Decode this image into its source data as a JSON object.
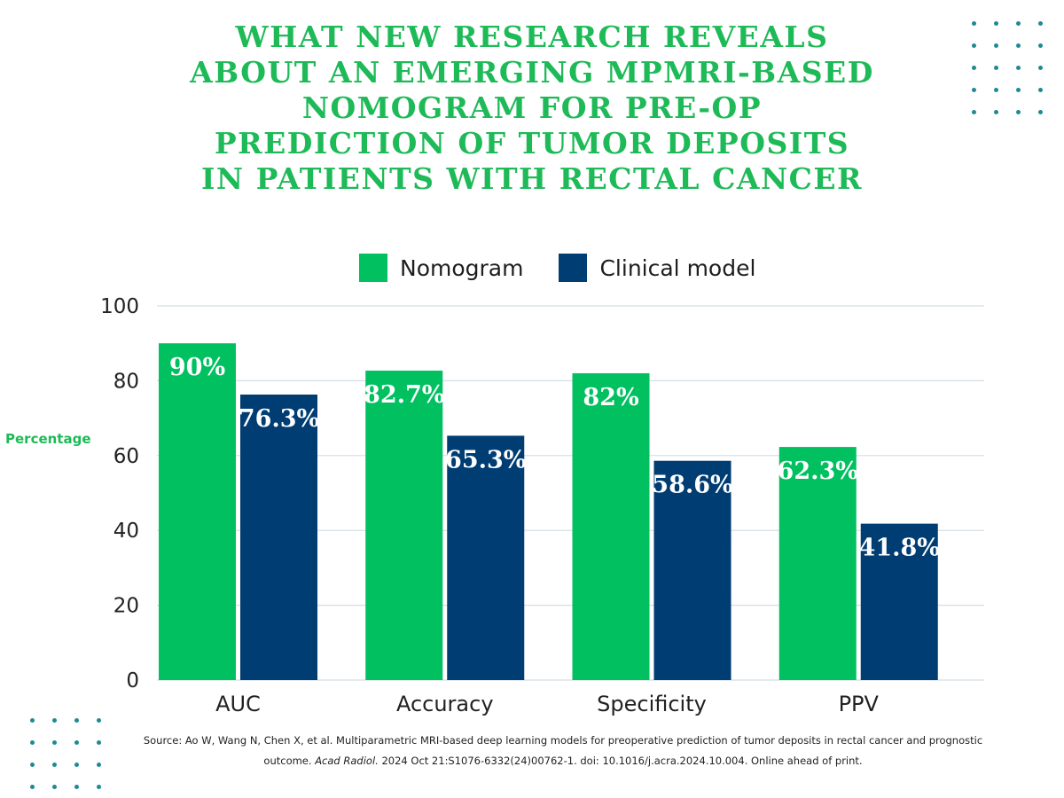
{
  "title_lines": [
    "WHAT NEW RESEARCH REVEALS",
    "ABOUT AN EMERGING MPMRI-BASED",
    "NOMOGRAM FOR PRE-OP",
    "PREDICTION OF TUMOR DEPOSITS",
    "IN PATIENTS WITH RECTAL CANCER"
  ],
  "colors": {
    "title": "#1dba57",
    "nomogram": "#00c060",
    "clinical": "#003d73",
    "dots": "#1f8a93",
    "grid": "#d4dde3",
    "axis_text": "#222222",
    "bar_label": "#ffffff",
    "ylabel": "#1dba57"
  },
  "chart_data": {
    "type": "bar",
    "categories": [
      "AUC",
      "Accuracy",
      "Specificity",
      "PPV"
    ],
    "series": [
      {
        "name": "Nomogram",
        "values": [
          90,
          82.7,
          82,
          62.3
        ],
        "labels": [
          "90%",
          "82.7%",
          "82%",
          "62.3%"
        ]
      },
      {
        "name": "Clinical model",
        "values": [
          76.3,
          65.3,
          58.6,
          41.8
        ],
        "labels": [
          "76.3%",
          "65.3%",
          "58.6%",
          "41.8%"
        ]
      }
    ],
    "ylim": [
      0,
      100
    ],
    "yticks": [
      "0",
      "20",
      "40",
      "60",
      "80",
      "100"
    ],
    "ylabel": "Percentage",
    "xlabel": "",
    "grid": true,
    "legend": "top-center"
  },
  "source": {
    "text_a": "Source: Ao W, Wang N, Chen X, et al. Multiparametric MRI-based deep learning models for preoperative prediction of tumor deposits in rectal cancer and prognostic outcome. ",
    "journal": "Acad Radiol.",
    "text_b": " 2024 Oct 21:S1076-6332(24)00762-1. doi: 10.1016/j.acra.2024.10.004. Online ahead of print."
  }
}
